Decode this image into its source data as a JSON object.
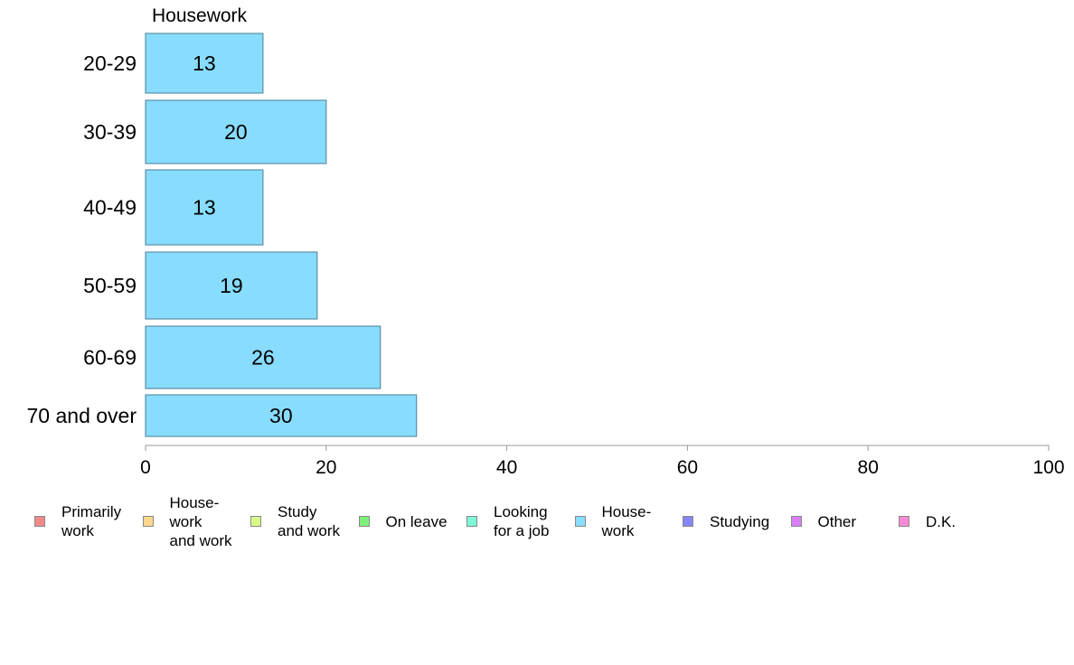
{
  "chart_data": {
    "type": "bar",
    "orientation": "horizontal",
    "title": "Housework",
    "categories": [
      "20-29",
      "30-39",
      "40-49",
      "50-59",
      "60-69",
      "70 and over"
    ],
    "values": [
      13,
      20,
      13,
      19,
      26,
      30
    ],
    "xlim": [
      0,
      100
    ],
    "xticks": [
      0,
      20,
      40,
      60,
      80,
      100
    ],
    "grid": false,
    "data_labels": true,
    "bar_color": "#88dcfe",
    "bar_edge_color": "#5a8fa8",
    "legend_placement": "bottom",
    "legend": [
      {
        "label": "Primarily\nwork",
        "color": "#f08a87"
      },
      {
        "label": "House-\nwork\nand work",
        "color": "#fcd88e"
      },
      {
        "label": "Study\nand work",
        "color": "#d9f98a"
      },
      {
        "label": "On leave",
        "color": "#7ef07a"
      },
      {
        "label": "Looking\nfor a job",
        "color": "#7ef7d6"
      },
      {
        "label": "House-\nwork",
        "color": "#88dcfe"
      },
      {
        "label": "Studying",
        "color": "#8686f7"
      },
      {
        "label": "Other",
        "color": "#d97ef7"
      },
      {
        "label": "D.K.",
        "color": "#f78ad9"
      }
    ]
  }
}
